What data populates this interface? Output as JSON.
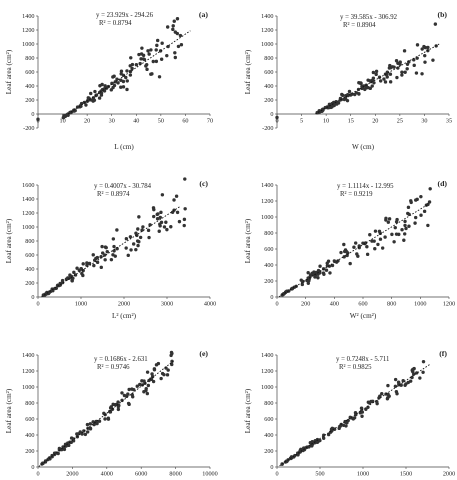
{
  "chart_data": [
    {
      "panel": "(a)",
      "type": "scatter",
      "xlabel": "L (cm)",
      "ylabel": "Leaf area (cm²)",
      "xlim": [
        0,
        70
      ],
      "ylim": [
        -200,
        1400
      ],
      "xticks": [
        0,
        10,
        20,
        30,
        40,
        50,
        60,
        70
      ],
      "yticks": [
        -200,
        0,
        200,
        400,
        600,
        800,
        1000,
        1200,
        1400
      ],
      "equation": "y = 23.929x - 294.26",
      "r2": "R² = 0.8794",
      "trend": {
        "slope": 23.929,
        "intercept": -294.26,
        "x_range": [
          12.3,
          62
        ]
      },
      "scatter": {
        "x_range": [
          10,
          59
        ],
        "noise": 0.16,
        "n": 120,
        "seed": 11,
        "extra": [
          [
            0,
            -75
          ]
        ]
      }
    },
    {
      "panel": "(b)",
      "type": "scatter",
      "xlabel": "W (cm)",
      "ylabel": "Leaf area (cm²)",
      "xlim": [
        0,
        35
      ],
      "ylim": [
        -200,
        1400
      ],
      "xticks": [
        0,
        5,
        10,
        15,
        20,
        25,
        30,
        35
      ],
      "yticks": [
        -200,
        0,
        200,
        400,
        600,
        800,
        1000,
        1200,
        1400
      ],
      "equation": "y = 39.585x - 306.92",
      "r2": "R² = 0.8904",
      "trend": {
        "slope": 39.585,
        "intercept": -306.92,
        "x_range": [
          7.8,
          33
        ]
      },
      "scatter": {
        "x_range": [
          8,
          32.5
        ],
        "noise": 0.15,
        "n": 120,
        "seed": 23,
        "extra": [
          [
            0,
            -50
          ]
        ]
      }
    },
    {
      "panel": "(c)",
      "type": "scatter",
      "xlabel": "L² (cm²)",
      "ylabel": "Leaf area (cm²)",
      "xlim": [
        0,
        4000
      ],
      "ylim": [
        0,
        1600
      ],
      "xticks": [
        0,
        1000,
        2000,
        3000,
        4000
      ],
      "yticks": [
        0,
        200,
        400,
        600,
        800,
        1000,
        1200,
        1400,
        1600
      ],
      "equation": "y = 0.4007x - 30.784",
      "r2": "R² = 0.8974",
      "trend": {
        "slope": 0.4007,
        "intercept": -30.784,
        "x_range": [
          80,
          3300
        ]
      },
      "scatter": {
        "x_range": [
          100,
          3500
        ],
        "noise": 0.13,
        "n": 120,
        "seed": 37,
        "extra": []
      }
    },
    {
      "panel": "(d)",
      "type": "scatter",
      "xlabel": "W² (cm²)",
      "ylabel": "Leaf area (cm²)",
      "xlim": [
        0,
        1200
      ],
      "ylim": [
        0,
        1400
      ],
      "xticks": [
        0,
        200,
        400,
        600,
        800,
        1000,
        1200
      ],
      "yticks": [
        0,
        200,
        400,
        600,
        800,
        1000,
        1200,
        1400
      ],
      "equation": "y = 1.1114x - 12.995",
      "r2": "R² = 0.9219",
      "trend": {
        "slope": 1.1114,
        "intercept": -12.995,
        "x_range": [
          15,
          1060
        ]
      },
      "scatter": {
        "x_range": [
          30,
          1080
        ],
        "noise": 0.12,
        "n": 120,
        "seed": 41,
        "extra": []
      }
    },
    {
      "panel": "(e)",
      "type": "scatter",
      "xlabel": "(L + W)² (cm²)",
      "ylabel": "Leaf area (cm²)",
      "xlim": [
        0,
        10000
      ],
      "ylim": [
        0,
        1400
      ],
      "xticks": [
        0,
        2000,
        4000,
        6000,
        8000,
        10000
      ],
      "yticks": [
        0,
        200,
        400,
        600,
        800,
        1000,
        1200,
        1400
      ],
      "equation": "y = 0.1686x - 2.631",
      "r2": "R² = 0.9746",
      "trend": {
        "slope": 0.1686,
        "intercept": -2.631,
        "x_range": [
          50,
          7900
        ]
      },
      "scatter": {
        "x_range": [
          200,
          7800
        ],
        "noise": 0.07,
        "n": 120,
        "seed": 53,
        "extra": []
      }
    },
    {
      "panel": "(f)",
      "type": "scatter",
      "xlabel": "L x W (cm²)",
      "ylabel": "Leaf area (cm²)",
      "xlim": [
        0,
        2000
      ],
      "ylim": [
        0,
        1400
      ],
      "xticks": [
        0,
        500,
        1000,
        1500,
        2000
      ],
      "yticks": [
        0,
        200,
        400,
        600,
        800,
        1000,
        1200,
        1400
      ],
      "equation": "y = 0.7248x - 5.711",
      "r2": "R² = 0.9825",
      "trend": {
        "slope": 0.7248,
        "intercept": -5.711,
        "x_range": [
          30,
          1780
        ]
      },
      "scatter": {
        "x_range": [
          60,
          1720
        ],
        "noise": 0.05,
        "n": 120,
        "seed": 67,
        "extra": []
      }
    }
  ]
}
